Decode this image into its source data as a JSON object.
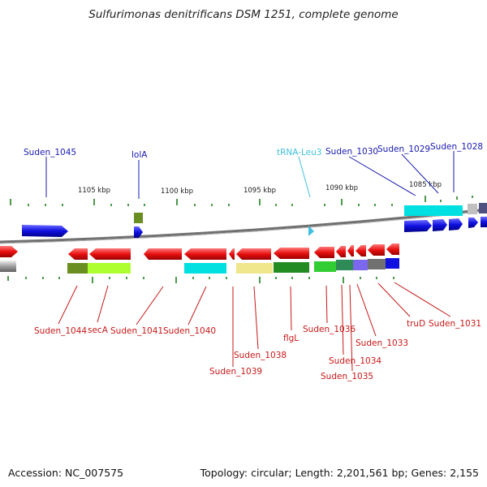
{
  "title": "Sulfurimonas denitrificans DSM 1251, complete genome",
  "footer": {
    "accession": "Accession: NC_007575",
    "summary": "Topology: circular; Length: 2,201,561 bp; Genes: 2,155"
  },
  "scale_labels": [
    "1105 kbp",
    "1100 kbp",
    "1095 kbp",
    "1090 kbp",
    "1085 kbp"
  ],
  "top_labels": [
    "Suden_1045",
    "lolA",
    "tRNA-Leu3",
    "Suden_1030",
    "Suden_1029",
    "Suden_1028"
  ],
  "bottom_labels": [
    "Suden_1044",
    "secA",
    "Suden_1041",
    "Suden_1040",
    "Suden_1039",
    "Suden_1038",
    "flgL",
    "Suden_1036",
    "Suden_1034",
    "Suden_1035",
    "Suden_1033",
    "truD",
    "Suden_1031"
  ],
  "colors": {
    "forward_gene": "#1010e0",
    "reverse_gene": "#e81010",
    "trna": "#40c0e0",
    "forward_label": "#1a1ab0",
    "reverse_label": "#c81818",
    "backbone": "#808080",
    "ticks": "#208020"
  }
}
